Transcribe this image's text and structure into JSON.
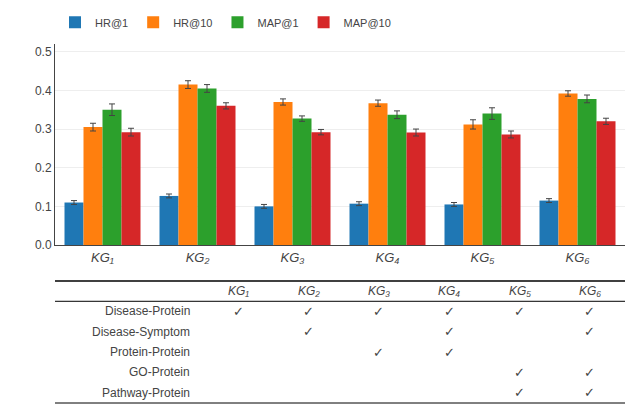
{
  "chart_data": [
    {
      "type": "bar",
      "categories": [
        "KG₁",
        "KG₂",
        "KG₃",
        "KG₄",
        "KG₅",
        "KG₆"
      ],
      "series": [
        {
          "name": "HR@1",
          "values": [
            0.11,
            0.127,
            0.1,
            0.107,
            0.105,
            0.115
          ],
          "errors": [
            0.005,
            0.005,
            0.005,
            0.005,
            0.005,
            0.005
          ]
        },
        {
          "name": "HR@10",
          "values": [
            0.305,
            0.415,
            0.37,
            0.367,
            0.312,
            0.392
          ],
          "errors": [
            0.01,
            0.01,
            0.008,
            0.008,
            0.012,
            0.007
          ]
        },
        {
          "name": "MAP@1",
          "values": [
            0.35,
            0.405,
            0.327,
            0.337,
            0.34,
            0.378
          ],
          "errors": [
            0.015,
            0.01,
            0.007,
            0.01,
            0.015,
            0.01
          ]
        },
        {
          "name": "MAP@10",
          "values": [
            0.292,
            0.36,
            0.292,
            0.291,
            0.286,
            0.32
          ],
          "errors": [
            0.01,
            0.008,
            0.007,
            0.009,
            0.009,
            0.008
          ]
        }
      ],
      "ylim": [
        0.0,
        0.52
      ],
      "yticks": [
        {
          "value": 0.0,
          "label": "0.0"
        },
        0.1,
        0.2,
        0.3,
        0.4,
        0.5
      ],
      "grid": true,
      "legend": "upper left"
    },
    {
      "type": "table",
      "categories": [
        "KG₁",
        "KG₂",
        "KG₃",
        "KG₄",
        "KG₅",
        "KG₆"
      ],
      "series": [
        {
          "name": "Disease-Protein",
          "values": [
            "✓",
            "✓",
            "✓",
            "✓",
            "✓",
            "✓"
          ]
        },
        {
          "name": "Disease-Symptom",
          "values": [
            null,
            "✓",
            null,
            "✓",
            null,
            "✓"
          ]
        },
        {
          "name": "Protein-Protein",
          "values": [
            null,
            null,
            "✓",
            "✓",
            null,
            null
          ]
        },
        {
          "name": "GO-Protein",
          "values": [
            null,
            null,
            null,
            null,
            "✓",
            "✓"
          ]
        },
        {
          "name": "Pathway-Protein",
          "values": [
            null,
            null,
            null,
            null,
            "✓",
            "✓"
          ]
        }
      ]
    }
  ]
}
